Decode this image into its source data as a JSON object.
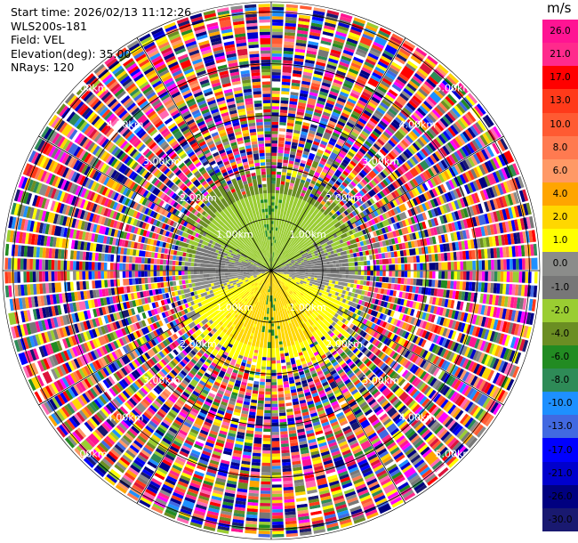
{
  "header": {
    "start_time": "Start time: 2026/02/13 11:12:26",
    "instrument": "WLS200s-181",
    "field": "Field: VEL",
    "elevation": "Elevation(deg): 35.00",
    "nrays": "NRays: 120"
  },
  "colorbar": {
    "unit": "m/s",
    "ticks": [
      "26.0",
      "21.0",
      "17.0",
      "13.0",
      "10.0",
      "8.0",
      "6.0",
      "4.0",
      "2.0",
      "1.0",
      "0.0",
      "-1.0",
      "-2.0",
      "-4.0",
      "-6.0",
      "-8.0",
      "-10.0",
      "-13.0",
      "-17.0",
      "-21.0",
      "-26.0",
      "-30.0"
    ],
    "colors": [
      "#ff1493",
      "#ff2a8c",
      "#ff0000",
      "#ff3a1a",
      "#ff5a32",
      "#ff7a50",
      "#ff9966",
      "#ffa500",
      "#ffd700",
      "#ffff00",
      "#8b8c8a",
      "#777777",
      "#9acd32",
      "#6b8e23",
      "#228b22",
      "#2e8b57",
      "#1e90ff",
      "#4169e1",
      "#0000ff",
      "#0000cd",
      "#000080",
      "#191970"
    ]
  },
  "chart_data": {
    "type": "heatmap",
    "projection": "PPI",
    "field": "VEL",
    "units": "m/s",
    "elevation_deg": 35.0,
    "nrays": 120,
    "max_range_km": 5.2,
    "valid_data_range_km": 2.1,
    "range_rings_km": [
      1.0,
      2.0,
      3.0,
      4.0,
      5.0
    ],
    "ring_labels": [
      "1.00km",
      "2.00km",
      "3.00km",
      "4.00km",
      "5.00km"
    ],
    "color_levels": [
      -30,
      -26,
      -21,
      -17,
      -13,
      -10,
      -8,
      -6,
      -4,
      -2,
      -1,
      0,
      1,
      2,
      4,
      6,
      8,
      10,
      13,
      17,
      21,
      26
    ]
  }
}
